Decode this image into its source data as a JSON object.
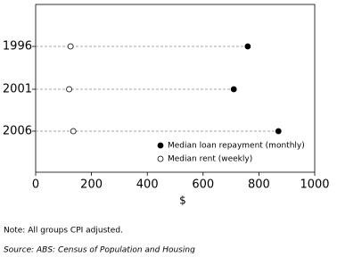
{
  "chart_data": {
    "type": "dot",
    "categories": [
      "1996",
      "2001",
      "2006"
    ],
    "series": [
      {
        "name": "Median loan repayment (monthly)",
        "color": "#000000",
        "values": [
          760,
          710,
          870
        ]
      },
      {
        "name": "Median rent (weekly)",
        "color": "#ffffff",
        "values": [
          125,
          120,
          135
        ]
      }
    ],
    "x_label": "$",
    "xlim": [
      0,
      1000
    ],
    "xticks": [
      0,
      200,
      400,
      600,
      800,
      1000
    ],
    "legend": "lower-right",
    "notes": [
      "Note: All groups CPI adjusted.",
      "Source: ABS: Census of Population and Housing"
    ]
  }
}
